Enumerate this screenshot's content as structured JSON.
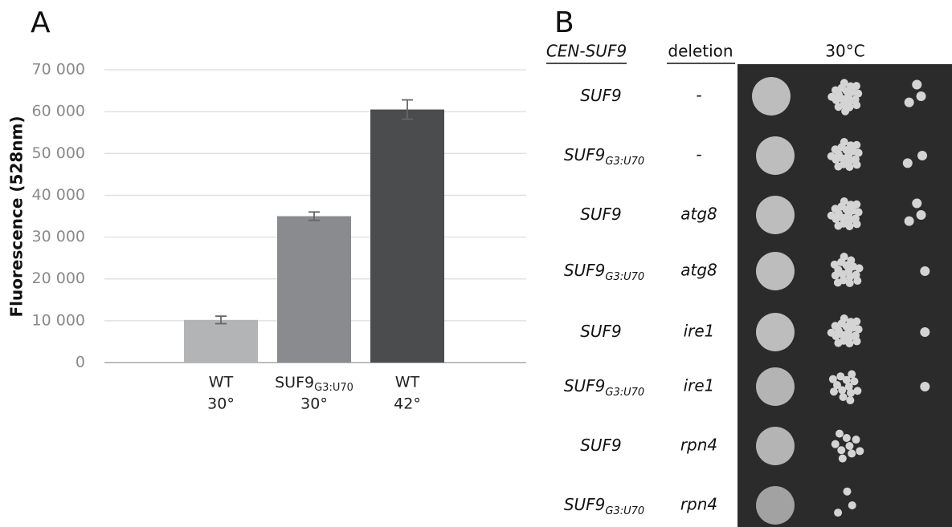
{
  "panel_labels": [
    "A",
    "B"
  ],
  "chart_data": {
    "type": "bar",
    "y_label": "Fluorescence (528nm)",
    "categories": [
      [
        "WT",
        "30°"
      ],
      [
        "SUF9",
        "G3:U70",
        "30°"
      ],
      [
        "WT",
        "42°"
      ]
    ],
    "values": [
      10200,
      35000,
      60500
    ],
    "errors": [
      900,
      1000,
      2300
    ],
    "colors": [
      "#b3b4b6",
      "#8a8b8f",
      "#4b4c4e"
    ],
    "ylim": [
      0,
      70000
    ],
    "yticks": [
      0,
      {
        "value": 10000,
        "label": "10 000"
      },
      {
        "value": 20000,
        "label": "20 000"
      },
      {
        "value": 30000,
        "label": "30 000"
      },
      {
        "value": 40000,
        "label": "40 000"
      },
      {
        "value": 50000,
        "label": "50 000"
      },
      {
        "value": 60000,
        "label": "60 000"
      },
      {
        "value": 70000,
        "label": "70 000"
      }
    ],
    "grid": true
  },
  "panel_b": {
    "header": {
      "construct": "CEN-SUF9",
      "deletion": "deletion",
      "condition": "30°C"
    },
    "rows": [
      {
        "construct": "SUF9",
        "deletion": "-"
      },
      {
        "construct": "SUF9",
        "subscript": "G3:U70",
        "deletion": "-"
      },
      {
        "construct": "SUF9",
        "deletion": "atg8"
      },
      {
        "construct": "SUF9",
        "subscript": "G3:U70",
        "deletion": "atg8"
      },
      {
        "construct": "SUF9",
        "deletion": "ire1"
      },
      {
        "construct": "SUF9",
        "subscript": "G3:U70",
        "deletion": "ire1"
      },
      {
        "construct": "SUF9",
        "deletion": "rpn4"
      },
      {
        "construct": "SUF9",
        "subscript": "G3:U70",
        "deletion": "rpn4"
      }
    ]
  }
}
